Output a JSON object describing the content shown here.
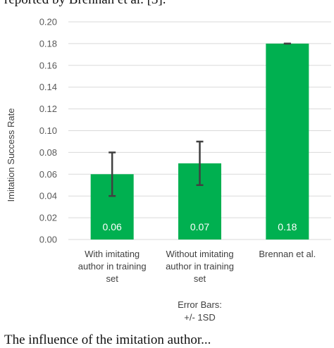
{
  "page": {
    "top_cropped_text": "reported by Brennan et al. [3].",
    "bottom_cropped_text": "The influence of the imitation author..."
  },
  "chart_data": {
    "type": "bar",
    "categories": [
      [
        "With imitating",
        "author in training",
        "set"
      ],
      [
        "Without imitating",
        "author in training",
        "set"
      ],
      [
        "Brennan et al."
      ]
    ],
    "values": [
      0.06,
      0.07,
      0.18
    ],
    "value_labels": [
      "0.06",
      "0.07",
      "0.18"
    ],
    "error_bars": [
      0.02,
      0.02,
      0.0
    ],
    "ylabel": "Imitation Success Rate",
    "ylim": [
      0,
      0.2
    ],
    "yticks": [
      0.0,
      0.02,
      0.04,
      0.06,
      0.08,
      0.1,
      0.12,
      0.14,
      0.16,
      0.18,
      0.2
    ],
    "ytick_labels": [
      "0.00",
      "0.02",
      "0.04",
      "0.06",
      "0.08",
      "0.10",
      "0.12",
      "0.14",
      "0.16",
      "0.18",
      "0.20"
    ],
    "footnote": [
      "Error Bars:",
      "+/- 1SD"
    ],
    "grid": true,
    "colors": {
      "bar": "#00b050",
      "grid": "#d9d9d9",
      "error": "#404040"
    }
  }
}
